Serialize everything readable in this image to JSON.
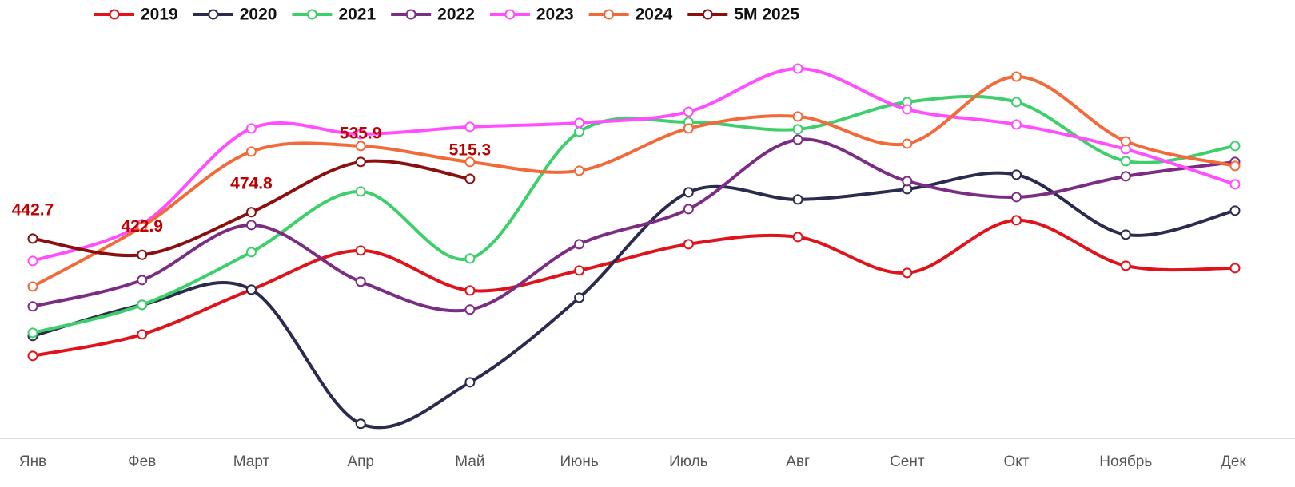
{
  "chart_data": {
    "type": "line",
    "categories": [
      "Янв",
      "Фев",
      "Март",
      "Апр",
      "Май",
      "Июнь",
      "Июль",
      "Авг",
      "Сент",
      "Окт",
      "Ноябрь",
      "Дек"
    ],
    "ylim": [
      200,
      690
    ],
    "legend": "top",
    "series": [
      {
        "name": "2019",
        "color": "#e0121a",
        "values": [
          300.1,
          326.3,
          380.6,
          428.2,
          379.6,
          403.9,
          435.9,
          444.6,
          401.0,
          465.0,
          409.7,
          406.8
        ]
      },
      {
        "name": "2020",
        "color": "#2b2a4f",
        "values": [
          324.4,
          362.2,
          380.6,
          217.7,
          268.1,
          370.9,
          499.0,
          490.2,
          502.8,
          520.3,
          447.6,
          476.7
        ]
      },
      {
        "name": "2021",
        "color": "#3ccf6a",
        "values": [
          328.2,
          362.2,
          426.2,
          499.9,
          418.4,
          572.7,
          584.3,
          575.6,
          608.6,
          608.6,
          536.8,
          555.2
        ]
      },
      {
        "name": "2022",
        "color": "#7b2d84",
        "values": [
          360.3,
          392.3,
          459.2,
          390.3,
          356.4,
          435.9,
          478.6,
          563.0,
          512.5,
          493.1,
          518.4,
          535.8
        ]
      },
      {
        "name": "2023",
        "color": "#ff4dff",
        "values": [
          415.5,
          460.2,
          576.6,
          569.8,
          578.5,
          583.4,
          596.9,
          649.3,
          599.8,
          581.4,
          551.3,
          508.7
        ]
      },
      {
        "name": "2024",
        "color": "#f26a3a",
        "values": [
          384.5,
          457.3,
          548.4,
          555.2,
          535.8,
          525.2,
          576.6,
          591.1,
          558.1,
          639.6,
          561.0,
          531.0
        ]
      },
      {
        "name": "5M 2025",
        "color": "#8b0f0f",
        "values": [
          442.7,
          422.9,
          474.8,
          535.9,
          515.3,
          null,
          null,
          null,
          null,
          null,
          null,
          null
        ],
        "data_labels": true
      }
    ]
  }
}
